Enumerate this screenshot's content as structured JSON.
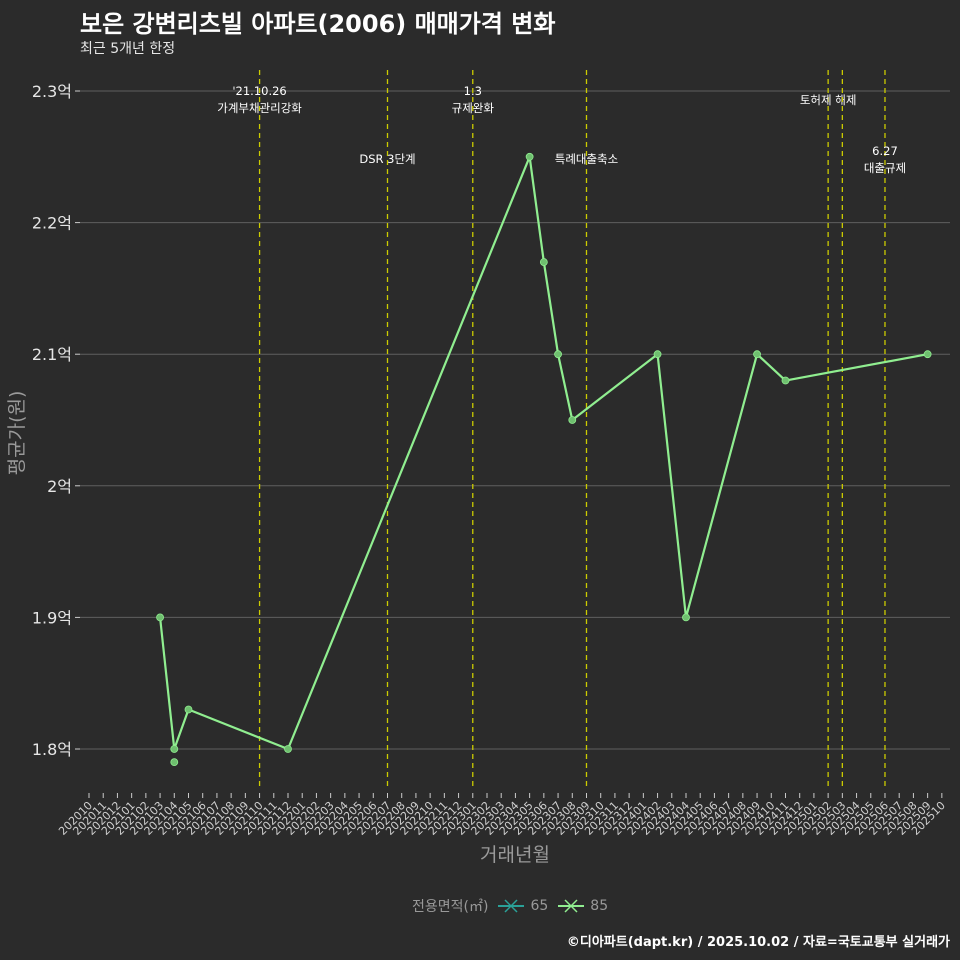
{
  "header": {
    "title": "보은 강변리츠빌 아파트(2006) 매매가격 변화",
    "subtitle": "최근 5개년 한정"
  },
  "caption": "©디아파트(dapt.kr) / 2025.10.02 / 자료=국토교통부 실거래가",
  "legend": {
    "title": "전용면적(㎡)",
    "items": [
      {
        "label": "65",
        "color": "#2aa198"
      },
      {
        "label": "85",
        "color": "#90ee90"
      }
    ]
  },
  "colors": {
    "background": "#2b2b2b",
    "grid": "#5f5f5f",
    "series85": "#90ee90",
    "eventLine": "#cccc00",
    "axisTitle": "#9a9a9a"
  },
  "chart_data": {
    "type": "line",
    "title": "보은 강변리츠빌 아파트(2006) 매매가격 변화",
    "xlabel": "거래년월",
    "ylabel": "평균가(원)",
    "ylim": [
      1.77,
      2.32
    ],
    "yticks": [
      1.8,
      1.9,
      2.0,
      2.1,
      2.2,
      2.3
    ],
    "ytick_labels": [
      "1.8억",
      "1.9억",
      "2억",
      "2.1억",
      "2.2억",
      "2.3억"
    ],
    "categories": [
      "202010",
      "202011",
      "202012",
      "202101",
      "202102",
      "202103",
      "202104",
      "202105",
      "202106",
      "202107",
      "202108",
      "202109",
      "202110",
      "202111",
      "202112",
      "202201",
      "202202",
      "202203",
      "202204",
      "202205",
      "202206",
      "202207",
      "202208",
      "202209",
      "202210",
      "202211",
      "202212",
      "202301",
      "202302",
      "202303",
      "202304",
      "202305",
      "202306",
      "202307",
      "202308",
      "202309",
      "202310",
      "202311",
      "202312",
      "202401",
      "202402",
      "202403",
      "202404",
      "202405",
      "202406",
      "202407",
      "202408",
      "202409",
      "202410",
      "202411",
      "202412",
      "202501",
      "202502",
      "202503",
      "202504",
      "202505",
      "202506",
      "202507",
      "202508",
      "202509",
      "202510"
    ],
    "series": [
      {
        "name": "85",
        "color": "#90ee90",
        "points": [
          {
            "x": "202103",
            "y": 1.9
          },
          {
            "x": "202104",
            "y": 1.8
          },
          {
            "x": "202105",
            "y": 1.83
          },
          {
            "x": "202112",
            "y": 1.8
          },
          {
            "x": "202305",
            "y": 2.25
          },
          {
            "x": "202306",
            "y": 2.17
          },
          {
            "x": "202307",
            "y": 2.1
          },
          {
            "x": "202308",
            "y": 2.05
          },
          {
            "x": "202402",
            "y": 2.1
          },
          {
            "x": "202404",
            "y": 1.9
          },
          {
            "x": "202409",
            "y": 2.1
          },
          {
            "x": "202411",
            "y": 2.08
          },
          {
            "x": "202509",
            "y": 2.1
          }
        ],
        "extra_points": [
          {
            "x": "202104",
            "y": 1.79
          }
        ]
      }
    ],
    "events": [
      {
        "x": "202110",
        "lines": [
          "'21.10.26",
          "가계부채관리강화"
        ],
        "row": 1
      },
      {
        "x": "202207",
        "lines": [
          "DSR 3단계"
        ],
        "row": 2
      },
      {
        "x": "202301",
        "lines": [
          "1.3",
          "규제완화"
        ],
        "row": 1
      },
      {
        "x": "202309",
        "lines": [
          "특례대출축소"
        ],
        "row": 2
      },
      {
        "x": "202502",
        "lines": [
          "토허제 해제"
        ],
        "row": 1
      },
      {
        "x": "202503",
        "lines": [],
        "row": 0
      },
      {
        "x": "202506",
        "lines": [
          "6.27",
          "대출규제"
        ],
        "row": 2
      }
    ]
  }
}
